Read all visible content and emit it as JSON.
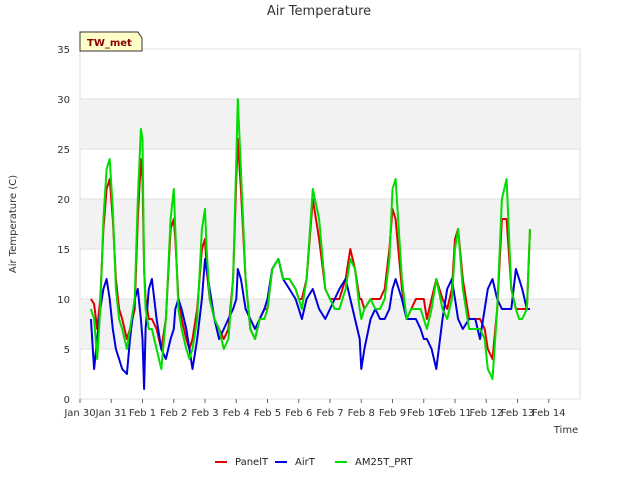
{
  "chart_data": {
    "type": "line",
    "title": "Air Temperature",
    "xlabel": "Time",
    "ylabel": "Air Temperature (C)",
    "station_badge": "TW_met",
    "ylim": [
      0,
      35
    ],
    "yticks": [
      0,
      5,
      10,
      15,
      20,
      25,
      30,
      35
    ],
    "xlim": [
      0,
      16
    ],
    "xticks": [
      {
        "x": 0,
        "label": "Jan 30"
      },
      {
        "x": 1,
        "label": "Jan 31"
      },
      {
        "x": 2,
        "label": "Feb 1"
      },
      {
        "x": 3,
        "label": "Feb 2"
      },
      {
        "x": 4,
        "label": "Feb 3"
      },
      {
        "x": 5,
        "label": "Feb 4"
      },
      {
        "x": 6,
        "label": "Feb 5"
      },
      {
        "x": 7,
        "label": "Feb 6"
      },
      {
        "x": 8,
        "label": "Feb 7"
      },
      {
        "x": 9,
        "label": "Feb 8"
      },
      {
        "x": 10,
        "label": "Feb 9"
      },
      {
        "x": 11,
        "label": "Feb 10"
      },
      {
        "x": 12,
        "label": "Feb 11"
      },
      {
        "x": 13,
        "label": "Feb 12"
      },
      {
        "x": 14,
        "label": "Feb 13"
      },
      {
        "x": 15,
        "label": "Feb 14"
      }
    ],
    "grid": true,
    "legend_position": "bottom",
    "series": [
      {
        "name": "PanelT",
        "color": "#dd0000",
        "x": [
          0.35,
          0.45,
          0.55,
          0.65,
          0.75,
          0.85,
          0.95,
          1.05,
          1.15,
          1.25,
          1.35,
          1.5,
          1.6,
          1.75,
          1.85,
          1.95,
          2.0,
          2.05,
          2.1,
          2.2,
          2.3,
          2.45,
          2.6,
          2.75,
          2.9,
          3.0,
          3.05,
          3.15,
          3.25,
          3.4,
          3.5,
          3.6,
          3.75,
          3.9,
          4.0,
          4.05,
          4.15,
          4.3,
          4.45,
          4.6,
          4.75,
          4.9,
          5.0,
          5.05,
          5.15,
          5.3,
          5.45,
          5.6,
          5.75,
          5.9,
          6.0,
          6.15,
          6.35,
          6.5,
          6.7,
          6.9,
          7.0,
          7.1,
          7.25,
          7.45,
          7.65,
          7.85,
          8.0,
          8.15,
          8.3,
          8.5,
          8.65,
          8.8,
          8.95,
          9.0,
          9.1,
          9.3,
          9.45,
          9.6,
          9.75,
          9.9,
          10.0,
          10.1,
          10.3,
          10.45,
          10.6,
          10.75,
          10.9,
          11.0,
          11.1,
          11.25,
          11.4,
          11.6,
          11.75,
          11.9,
          12.0,
          12.1,
          12.25,
          12.45,
          12.65,
          12.8,
          12.95,
          13.05,
          13.2,
          13.35,
          13.5,
          13.65,
          13.8,
          13.95,
          14.05,
          14.15,
          14.3,
          14.4
        ],
        "values": [
          10,
          9.5,
          7,
          10,
          17,
          21,
          22,
          18,
          12,
          9,
          8,
          6,
          7,
          9,
          18,
          24,
          22,
          13,
          10,
          8,
          8,
          7,
          5,
          8,
          17,
          18,
          16,
          10,
          8,
          6,
          5,
          6,
          9,
          15,
          16,
          13,
          10,
          8,
          7,
          6,
          7,
          12,
          22,
          26,
          21,
          12,
          7,
          6,
          8,
          9,
          9,
          13,
          14,
          12,
          12,
          11,
          10,
          10,
          12,
          20,
          16,
          11,
          10,
          10,
          10,
          12,
          15,
          13,
          10,
          10,
          9,
          10,
          10,
          10,
          11,
          15,
          19,
          18,
          11,
          8,
          9,
          10,
          10,
          10,
          8,
          10,
          12,
          10,
          9,
          11,
          16,
          17,
          12,
          8,
          8,
          8,
          7,
          5,
          4,
          9,
          18,
          18,
          11,
          9,
          9,
          9,
          9,
          17
        ],
        "fallback_note": "Series y-values follow the chart's visual shape (approximate)."
      },
      {
        "name": "AirT",
        "color": "#0000dd",
        "x": [
          0.35,
          0.45,
          0.55,
          0.65,
          0.75,
          0.85,
          0.95,
          1.05,
          1.15,
          1.25,
          1.35,
          1.5,
          1.6,
          1.75,
          1.85,
          1.95,
          2.0,
          2.05,
          2.1,
          2.2,
          2.3,
          2.45,
          2.6,
          2.75,
          2.9,
          3.0,
          3.05,
          3.15,
          3.25,
          3.4,
          3.5,
          3.6,
          3.75,
          3.9,
          4.0,
          4.05,
          4.15,
          4.3,
          4.45,
          4.6,
          4.75,
          4.9,
          5.0,
          5.05,
          5.15,
          5.3,
          5.45,
          5.6,
          5.75,
          5.9,
          6.0,
          6.15,
          6.35,
          6.5,
          6.7,
          6.9,
          7.0,
          7.1,
          7.25,
          7.45,
          7.65,
          7.85,
          8.0,
          8.15,
          8.3,
          8.5,
          8.65,
          8.8,
          8.95,
          9.0,
          9.1,
          9.3,
          9.45,
          9.6,
          9.75,
          9.9,
          10.0,
          10.1,
          10.3,
          10.45,
          10.6,
          10.75,
          10.9,
          11.0,
          11.1,
          11.25,
          11.4,
          11.6,
          11.75,
          11.9,
          12.0,
          12.1,
          12.25,
          12.45,
          12.65,
          12.8,
          12.95,
          13.05,
          13.2,
          13.35,
          13.5,
          13.65,
          13.8,
          13.95,
          14.05,
          14.15,
          14.3,
          14.4
        ],
        "values": [
          8,
          3,
          6,
          9,
          11,
          12,
          10,
          7,
          5,
          4,
          3,
          2.5,
          6,
          10,
          11,
          8,
          6,
          1,
          7,
          11,
          12,
          8,
          5,
          4,
          6,
          7,
          9,
          10,
          9,
          7,
          5,
          3,
          6,
          10,
          14,
          13,
          11,
          8,
          6,
          7,
          8,
          9,
          10,
          13,
          12,
          9,
          8,
          7,
          8,
          9,
          10,
          13,
          14,
          12,
          11,
          10,
          9,
          8,
          10,
          11,
          9,
          8,
          9,
          10,
          11,
          12,
          10,
          8,
          6,
          3,
          5,
          8,
          9,
          8,
          8,
          9,
          11,
          12,
          10,
          8,
          8,
          8,
          7,
          6,
          6,
          5,
          3,
          8,
          11,
          12,
          10,
          8,
          7,
          8,
          8,
          6,
          9,
          11,
          12,
          10,
          9,
          9,
          9,
          13,
          12,
          11,
          9,
          9
        ],
        "fallback_note": "Series y-values follow the chart's visual shape (approximate)."
      },
      {
        "name": "AM25T_PRT",
        "color": "#00dd00",
        "x": [
          0.35,
          0.45,
          0.55,
          0.65,
          0.75,
          0.85,
          0.95,
          1.05,
          1.15,
          1.25,
          1.35,
          1.5,
          1.6,
          1.75,
          1.85,
          1.95,
          2.0,
          2.05,
          2.1,
          2.2,
          2.3,
          2.45,
          2.6,
          2.75,
          2.9,
          3.0,
          3.05,
          3.15,
          3.25,
          3.4,
          3.5,
          3.6,
          3.75,
          3.9,
          4.0,
          4.05,
          4.15,
          4.3,
          4.45,
          4.6,
          4.75,
          4.9,
          5.0,
          5.05,
          5.15,
          5.3,
          5.45,
          5.6,
          5.75,
          5.9,
          6.0,
          6.15,
          6.35,
          6.5,
          6.7,
          6.9,
          7.0,
          7.1,
          7.25,
          7.45,
          7.65,
          7.85,
          8.0,
          8.15,
          8.3,
          8.5,
          8.65,
          8.8,
          8.95,
          9.0,
          9.1,
          9.3,
          9.45,
          9.6,
          9.75,
          9.9,
          10.0,
          10.1,
          10.3,
          10.45,
          10.6,
          10.75,
          10.9,
          11.0,
          11.1,
          11.25,
          11.4,
          11.6,
          11.75,
          11.9,
          12.0,
          12.1,
          12.25,
          12.45,
          12.65,
          12.8,
          12.95,
          13.05,
          13.2,
          13.35,
          13.5,
          13.65,
          13.8,
          13.95,
          14.05,
          14.15,
          14.3,
          14.4
        ],
        "values": [
          9,
          8,
          4,
          9,
          18,
          23,
          24,
          19,
          11,
          8,
          7,
          5,
          7,
          10,
          20,
          27,
          26,
          13,
          9,
          7,
          7,
          5,
          3,
          8,
          18,
          21,
          17,
          9,
          7,
          5,
          4,
          5,
          8,
          17,
          19,
          15,
          10,
          8,
          7,
          5,
          6,
          12,
          24,
          30,
          23,
          12,
          7,
          6,
          8,
          8,
          9,
          13,
          14,
          12,
          12,
          11,
          10,
          9,
          12,
          21,
          18,
          11,
          10,
          9,
          9,
          11,
          14,
          13,
          9,
          8,
          9,
          10,
          9,
          9,
          10,
          14,
          21,
          22,
          12,
          8,
          9,
          9,
          9,
          8,
          7,
          9,
          12,
          9,
          8,
          10,
          15,
          17,
          11,
          7,
          7,
          7,
          6,
          3,
          2,
          9,
          20,
          22,
          11,
          9,
          8,
          8,
          9,
          17
        ],
        "fallback_note": "Series y-values follow the chart's visual shape (approximate)."
      }
    ]
  }
}
